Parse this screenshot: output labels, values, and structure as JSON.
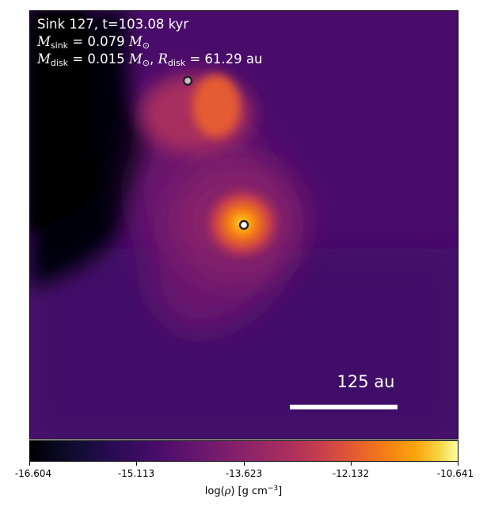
{
  "annotations": {
    "sink_title": "Sink 127, t=103.08 kyr",
    "sink_mass_symbol": "M",
    "sink_mass_sub": "sink",
    "sink_mass_value": "= 0.079",
    "sink_mass_unit": "M",
    "sink_mass_unit_sub": "⊙",
    "disk_mass_symbol": "M",
    "disk_mass_sub": "disk",
    "disk_mass_value": "= 0.015",
    "disk_mass_unit": "M",
    "disk_mass_unit_sub": "⊙",
    "disk_radius_symbol": "R",
    "disk_radius_sub": "disk",
    "disk_radius_value": "= 61.29 au"
  },
  "scalebar": {
    "label": "125 au"
  },
  "colorbar": {
    "ticks": [
      "-16.604",
      "-15.113",
      "-13.623",
      "-12.132",
      "-10.641"
    ],
    "label_prefix": "log(",
    "label_rho": "ρ",
    "label_units": ") [g cm",
    "label_exp": "−3",
    "label_close": "]",
    "colormap": "inferno"
  },
  "colors": {
    "background_purple": "#4b0c6b",
    "dark_region": "#06030f",
    "hot_core": "#fca50a",
    "warm_orange": "#e8602c"
  }
}
